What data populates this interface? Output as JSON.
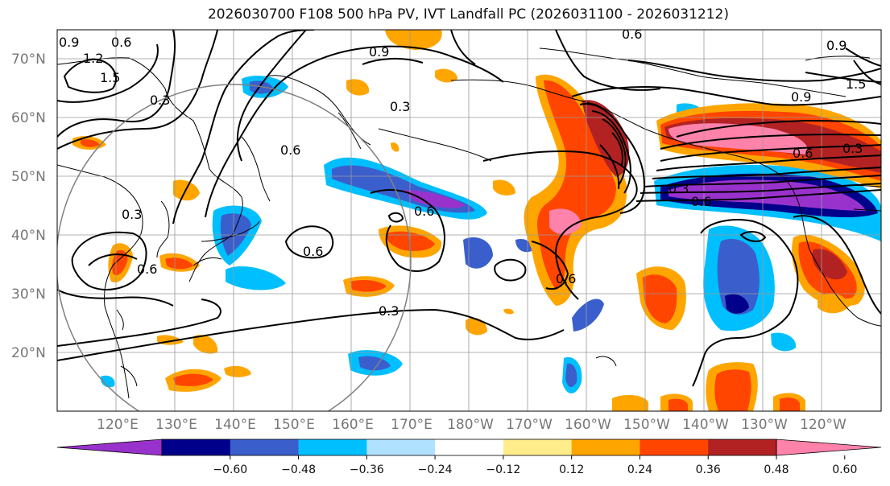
{
  "title": "2026030700 F108 500 hPa PV, IVT Landfall PC (2026031100 - 2026031212)",
  "lat_labels": [
    "70°N",
    "60°N",
    "50°N",
    "40°N",
    "30°N",
    "20°N"
  ],
  "lon_labels": [
    "120°E",
    "130°E",
    "140°E",
    "150°E",
    "160°E",
    "170°E",
    "180°W",
    "170°W",
    "160°W",
    "150°W",
    "140°W",
    "130°W",
    "120°W"
  ],
  "contour_labels": [
    "0.9",
    "0.6",
    "1.2",
    "1.5",
    "0.3",
    "0.6",
    "0.9",
    "0.3",
    "0.6",
    "0.3",
    "0.6",
    "0.6",
    "0.6",
    "0.3",
    "0.9",
    "0.6",
    "0.3",
    "0.6",
    "0.6",
    "0.9",
    "1.5",
    "0.3"
  ],
  "colorbar": {
    "colors": [
      "#9932cc",
      "#00008b",
      "#3a5fcd",
      "#00bfff",
      "#b0e2ff",
      "#ffffff",
      "#ffec8b",
      "#ffa500",
      "#ff4500",
      "#b22222",
      "#ff82ab"
    ],
    "tick_labels": [
      "−0.60",
      "−0.48",
      "−0.36",
      "−0.24",
      "−0.12",
      "0.12",
      "0.24",
      "0.36",
      "0.48",
      "0.60"
    ]
  }
}
